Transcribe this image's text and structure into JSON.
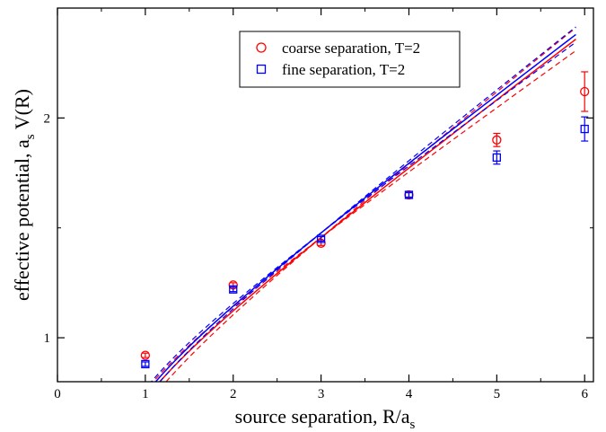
{
  "chart_data": {
    "type": "scatter",
    "title": "",
    "xlabel": {
      "main": "source separation, R/a",
      "sub": "s"
    },
    "ylabel": {
      "main": "effective potential, a",
      "sub": "s",
      "tail": " V(R)"
    },
    "xlim": [
      0,
      6.1
    ],
    "ylim": [
      0.8,
      2.5
    ],
    "xticks": [
      0,
      1,
      2,
      3,
      4,
      5,
      6
    ],
    "xtick_labels": [
      "0",
      "1",
      "2",
      "3",
      "4",
      "5",
      "6"
    ],
    "yticks": [
      1,
      2
    ],
    "ytick_labels": [
      "1",
      "2"
    ],
    "legend_position": "top-center",
    "series": [
      {
        "name": "coarse separation, T=2",
        "marker": "circle",
        "color": "#ff0000",
        "points": [
          {
            "x": 1,
            "y": 0.92,
            "err": 0.01
          },
          {
            "x": 2,
            "y": 1.24,
            "err": 0.01
          },
          {
            "x": 3,
            "y": 1.43,
            "err": 0.01
          },
          {
            "x": 4,
            "y": 1.65,
            "err": 0.015
          },
          {
            "x": 5,
            "y": 1.9,
            "err": 0.03
          },
          {
            "x": 6,
            "y": 2.12,
            "err": 0.09
          }
        ],
        "fit": {
          "a": 1.4557,
          "b": 0.3,
          "c": 0.2,
          "x_from": 0.8,
          "x_to": 5.9,
          "band": 0.018
        }
      },
      {
        "name": "fine separation, T=2",
        "marker": "square",
        "color": "#0000ff",
        "points": [
          {
            "x": 1,
            "y": 0.88,
            "err": 0.01
          },
          {
            "x": 2,
            "y": 1.22,
            "err": 0.01
          },
          {
            "x": 3,
            "y": 1.45,
            "err": 0.01
          },
          {
            "x": 4,
            "y": 1.65,
            "err": 0.01
          },
          {
            "x": 5,
            "y": 1.82,
            "err": 0.03
          },
          {
            "x": 6,
            "y": 1.95,
            "err": 0.055
          }
        ],
        "fit": {
          "a": 1.477,
          "b": 0.3,
          "c": 0.2,
          "x_from": 0.85,
          "x_to": 5.9,
          "band": 0.012
        }
      }
    ]
  }
}
